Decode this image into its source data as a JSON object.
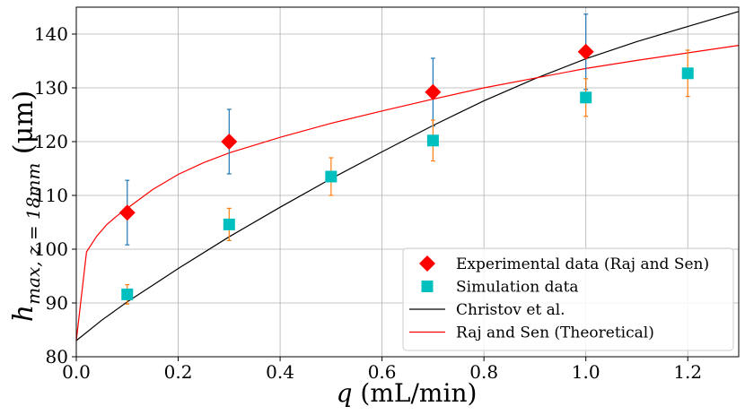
{
  "chart_data": {
    "type": "scatter",
    "xlabel": {
      "symbol": "q",
      "rest": " (mL/min)"
    },
    "ylabel": {
      "main": "h",
      "sub": "max, z = 18mm",
      "unit": " (μm)"
    },
    "xlim": [
      0.0,
      1.3
    ],
    "ylim": [
      80,
      145
    ],
    "xticks": [
      0.0,
      0.2,
      0.4,
      0.6,
      0.8,
      1.0,
      1.2
    ],
    "xtick_labels": [
      "0.0",
      "0.2",
      "0.4",
      "0.6",
      "0.8",
      "1.0",
      "1.2"
    ],
    "yticks": [
      80,
      90,
      100,
      110,
      120,
      130,
      140
    ],
    "ytick_labels": [
      "80",
      "90",
      "100",
      "110",
      "120",
      "130",
      "140"
    ],
    "grid": true,
    "legend_position": "bottom-right",
    "series": [
      {
        "name": "Experimental data (Raj and Sen)",
        "kind": "scatter",
        "marker": "diamond",
        "color": "#ff0000",
        "errorbar_color": "#1f77b4",
        "points": [
          {
            "x": 0.1,
            "y": 106.8,
            "err": 6.0
          },
          {
            "x": 0.3,
            "y": 120.0,
            "err": 6.0
          },
          {
            "x": 0.7,
            "y": 129.2,
            "err": 6.3
          },
          {
            "x": 1.0,
            "y": 136.7,
            "err": 7.0
          }
        ]
      },
      {
        "name": "Simulation data",
        "kind": "scatter",
        "marker": "square",
        "color": "#00bfbf",
        "errorbar_color": "#ff7f0e",
        "points": [
          {
            "x": 0.1,
            "y": 91.6,
            "err": 1.8
          },
          {
            "x": 0.3,
            "y": 104.6,
            "err": 3.0
          },
          {
            "x": 0.5,
            "y": 113.5,
            "err": 3.5
          },
          {
            "x": 0.7,
            "y": 120.2,
            "err": 3.8
          },
          {
            "x": 1.0,
            "y": 128.2,
            "err": 3.5
          },
          {
            "x": 1.2,
            "y": 132.7,
            "err": 4.3
          }
        ]
      },
      {
        "name": "Christov et al.",
        "kind": "line",
        "color": "#000000",
        "points": [
          {
            "x": 0.0,
            "y": 83.0
          },
          {
            "x": 0.05,
            "y": 86.8
          },
          {
            "x": 0.1,
            "y": 90.2
          },
          {
            "x": 0.15,
            "y": 93.3
          },
          {
            "x": 0.2,
            "y": 96.4
          },
          {
            "x": 0.3,
            "y": 102.3
          },
          {
            "x": 0.4,
            "y": 107.8
          },
          {
            "x": 0.5,
            "y": 113.1
          },
          {
            "x": 0.6,
            "y": 118.1
          },
          {
            "x": 0.7,
            "y": 123.0
          },
          {
            "x": 0.8,
            "y": 127.6
          },
          {
            "x": 0.9,
            "y": 131.7
          },
          {
            "x": 1.0,
            "y": 135.4
          },
          {
            "x": 1.1,
            "y": 138.6
          },
          {
            "x": 1.2,
            "y": 141.4
          },
          {
            "x": 1.3,
            "y": 144.2
          }
        ]
      },
      {
        "name": "Raj and Sen (Theoretical)",
        "kind": "line",
        "color": "#ff0000",
        "points": [
          {
            "x": 0.0,
            "y": 83.0
          },
          {
            "x": 0.02,
            "y": 99.5
          },
          {
            "x": 0.04,
            "y": 102.4
          },
          {
            "x": 0.06,
            "y": 104.6
          },
          {
            "x": 0.08,
            "y": 106.2
          },
          {
            "x": 0.1,
            "y": 107.6
          },
          {
            "x": 0.15,
            "y": 111.1
          },
          {
            "x": 0.2,
            "y": 113.9
          },
          {
            "x": 0.25,
            "y": 116.1
          },
          {
            "x": 0.3,
            "y": 117.9
          },
          {
            "x": 0.4,
            "y": 120.8
          },
          {
            "x": 0.5,
            "y": 123.4
          },
          {
            "x": 0.6,
            "y": 125.7
          },
          {
            "x": 0.7,
            "y": 127.9
          },
          {
            "x": 0.8,
            "y": 130.0
          },
          {
            "x": 0.9,
            "y": 131.8
          },
          {
            "x": 1.0,
            "y": 133.6
          },
          {
            "x": 1.1,
            "y": 135.1
          },
          {
            "x": 1.2,
            "y": 136.5
          },
          {
            "x": 1.3,
            "y": 137.9
          }
        ]
      }
    ]
  }
}
